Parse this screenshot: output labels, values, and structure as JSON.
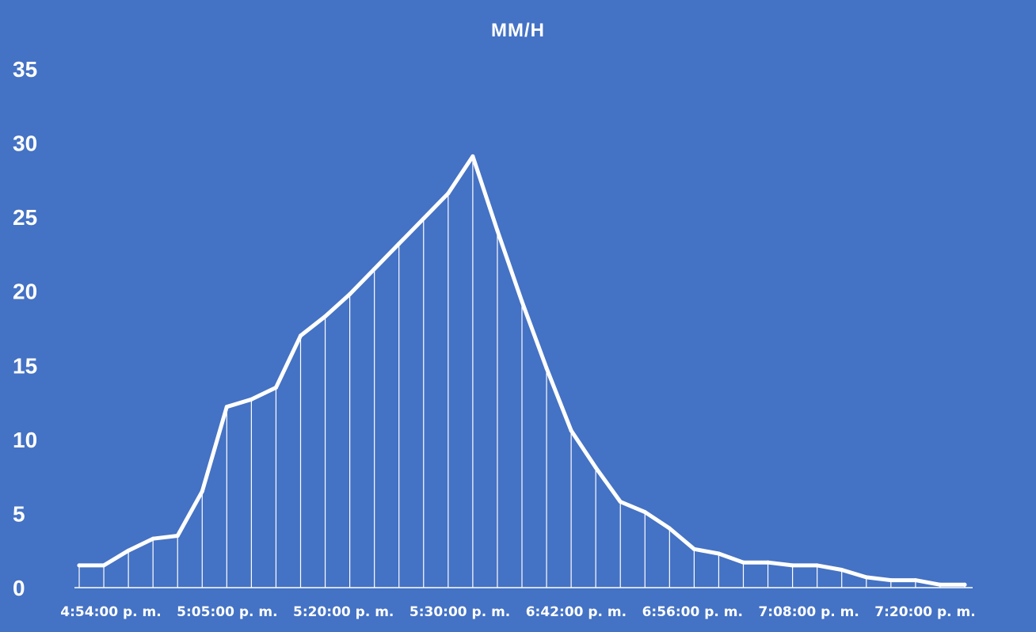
{
  "chart_data": {
    "type": "line",
    "title": "MM/H",
    "xlabel": "",
    "ylabel": "",
    "ylim": [
      0,
      35
    ],
    "y_ticks": [
      0,
      5,
      10,
      15,
      20,
      25,
      30,
      35
    ],
    "x_tick_labels": [
      "4:54:00 p. m.",
      "5:05:00 p. m.",
      "5:20:00 p. m.",
      "5:30:00 p. m.",
      "6:42:00 p. m.",
      "6:56:00 p. m.",
      "7:08:00 p. m.",
      "7:20:00 p. m."
    ],
    "drop_lines": true,
    "grid": false,
    "legend": "none",
    "series": [
      {
        "values": [
          1.5,
          1.5,
          2.5,
          3.3,
          3.5,
          6.5,
          12.2,
          12.7,
          13.5,
          17.0,
          18.3,
          19.8,
          21.5,
          23.2,
          24.9,
          26.6,
          29.1,
          24.1,
          19.3,
          14.8,
          10.6,
          8.1,
          5.8,
          5.1,
          4.0,
          2.6,
          2.3,
          1.7,
          1.7,
          1.5,
          1.5,
          1.2,
          0.7,
          0.5,
          0.5,
          0.2,
          0.2
        ]
      }
    ],
    "colors": {
      "background": "#4472C4",
      "line": "#FFFFFF",
      "text": "#FFFFFF"
    }
  }
}
